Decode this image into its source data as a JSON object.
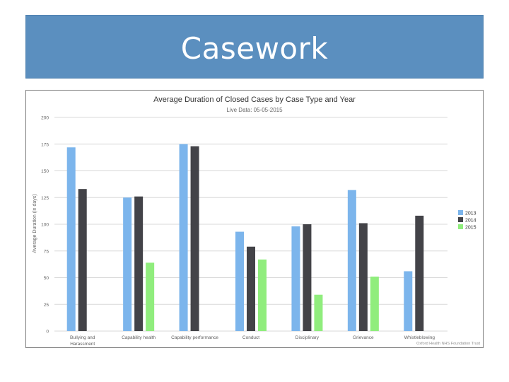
{
  "slide": {
    "title": "Casework"
  },
  "chart_data": {
    "type": "bar",
    "title": "Average Duration of Closed Cases by Case Type and Year",
    "subtitle": "Live Data: 05-05-2015",
    "xlabel": "",
    "ylabel": "Average Duration (in days)",
    "ylim": [
      0,
      200
    ],
    "yticks": [
      0,
      25,
      50,
      75,
      100,
      125,
      150,
      175,
      200
    ],
    "grid": true,
    "legend_position": "right",
    "credit": "Oxford Health NHS Foundation Trust",
    "categories": [
      "Bullying and Harassment",
      "Capability health",
      "Capability performance",
      "Conduct",
      "Disciplinary",
      "Grievance",
      "Whistleblowing"
    ],
    "category_lines": [
      [
        "Bullying and",
        "Harassment"
      ],
      [
        "Capability health"
      ],
      [
        "Capability performance"
      ],
      [
        "Conduct"
      ],
      [
        "Disciplinary"
      ],
      [
        "Grievance"
      ],
      [
        "Whistleblowing"
      ]
    ],
    "series": [
      {
        "name": "2013",
        "color": "#7cb5ec",
        "values": [
          172,
          125,
          175,
          93,
          98,
          132,
          56
        ]
      },
      {
        "name": "2014",
        "color": "#434348",
        "values": [
          133,
          126,
          173,
          79,
          100,
          101,
          108
        ]
      },
      {
        "name": "2015",
        "color": "#90ed7d",
        "values": [
          0,
          64,
          0,
          67,
          34,
          51,
          0
        ]
      }
    ]
  }
}
